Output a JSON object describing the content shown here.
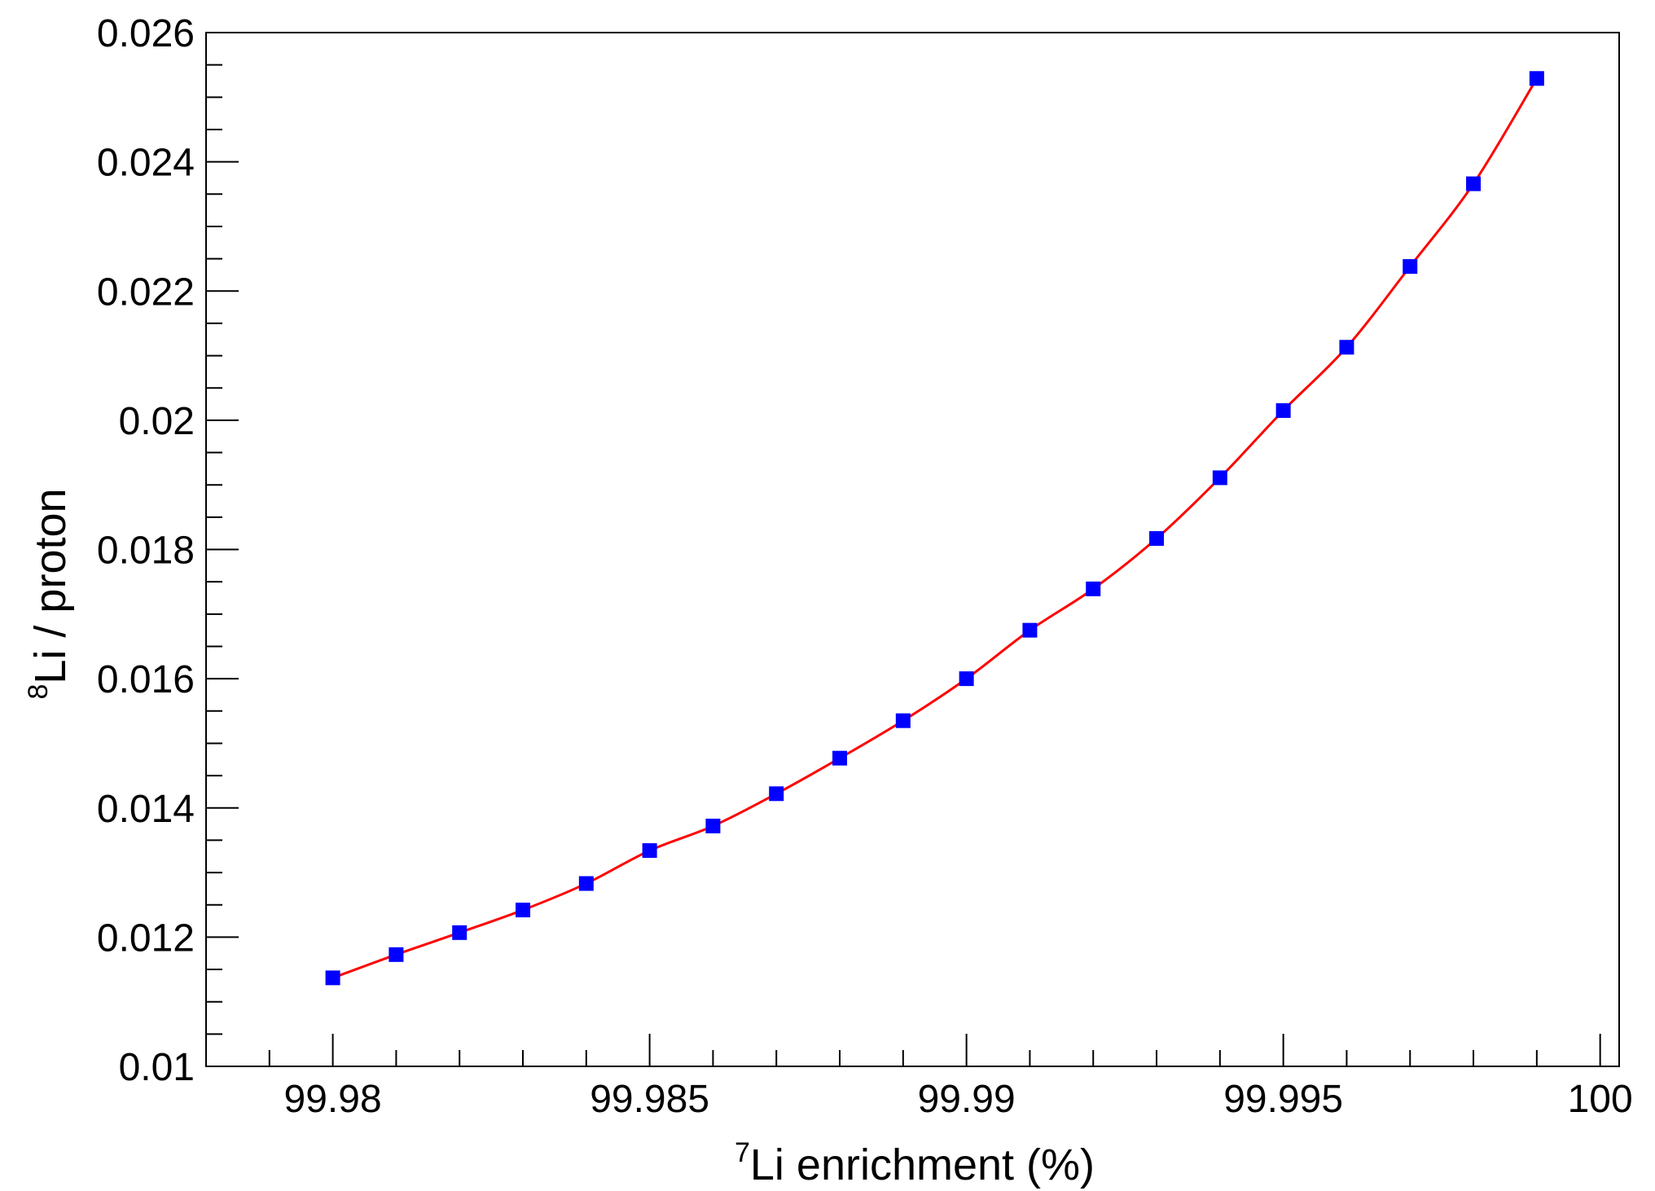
{
  "chart_data": {
    "type": "line",
    "xlabel_prefix": "7",
    "xlabel": "Li enrichment (%)",
    "ylabel_prefix": "8",
    "ylabel": "Li / proton",
    "xlim": [
      99.978,
      100.0003
    ],
    "ylim": [
      0.01,
      0.026
    ],
    "x_ticks": [
      99.98,
      99.985,
      99.99,
      99.995,
      100
    ],
    "x_tick_labels": [
      "99.98",
      "99.985",
      "99.99",
      "99.995",
      "100"
    ],
    "y_ticks": [
      0.01,
      0.012,
      0.014,
      0.016,
      0.018,
      0.02,
      0.022,
      0.024,
      0.026
    ],
    "y_tick_labels": [
      "0.01",
      "0.012",
      "0.014",
      "0.016",
      "0.018",
      "0.02",
      "0.022",
      "0.024",
      "0.026"
    ],
    "grid": false,
    "series": [
      {
        "marker_color": "#0000ff",
        "line_color": "#ff0000",
        "marker": "square",
        "x": [
          99.98,
          99.981,
          99.982,
          99.983,
          99.984,
          99.985,
          99.986,
          99.987,
          99.988,
          99.989,
          99.99,
          99.991,
          99.992,
          99.993,
          99.994,
          99.995,
          99.996,
          99.997,
          99.998,
          99.999
        ],
        "y": [
          0.01137,
          0.01173,
          0.01207,
          0.01242,
          0.01283,
          0.01334,
          0.01372,
          0.01422,
          0.01477,
          0.01535,
          0.016,
          0.01675,
          0.01739,
          0.01817,
          0.01911,
          0.02015,
          0.02113,
          0.02238,
          0.02366,
          0.02529
        ]
      }
    ]
  }
}
